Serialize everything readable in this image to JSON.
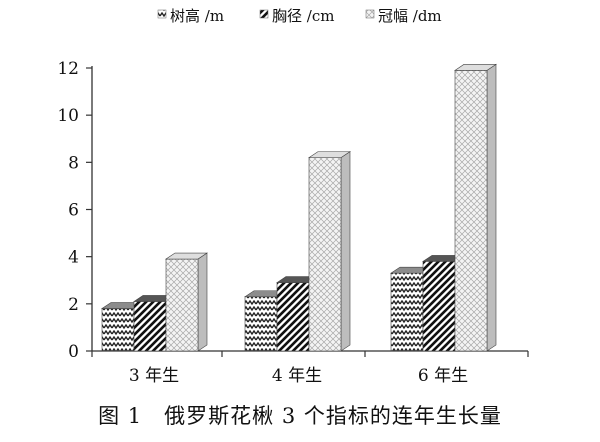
{
  "chart_data": {
    "type": "bar",
    "categories": [
      "3 年生",
      "4 年生",
      "6 年生"
    ],
    "series": [
      {
        "name": "树高 /m",
        "values": [
          1.8,
          2.3,
          3.3
        ],
        "pattern": "zigzag"
      },
      {
        "name": "胸径 /cm",
        "values": [
          2.1,
          2.9,
          3.8
        ],
        "pattern": "diagonal"
      },
      {
        "name": "冠幅 /dm",
        "values": [
          3.9,
          8.2,
          11.9
        ],
        "pattern": "crosshatch"
      }
    ],
    "ylim": [
      0,
      12
    ],
    "yticks": [
      0,
      2,
      4,
      6,
      8,
      10,
      12
    ],
    "grid": false,
    "legend_position": "top",
    "bar_style": "3d"
  },
  "caption": "图 1　俄罗斯花楸 3 个指标的连年生长量"
}
